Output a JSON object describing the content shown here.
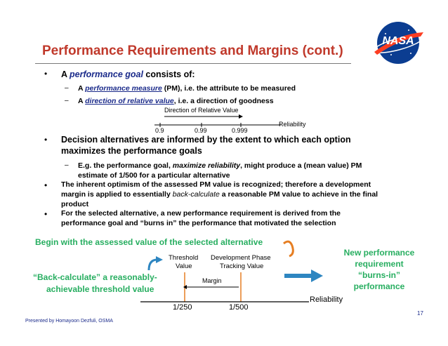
{
  "title": "Performance Requirements and Margins (cont.)",
  "bullets": {
    "b1": {
      "prefix": "A ",
      "em": "performance goal",
      "suffix": " consists of:"
    },
    "b1_sub1": {
      "prefix": "A ",
      "em": "performance measure",
      "suffix": " (PM), i.e. the attribute to be measured"
    },
    "b1_sub2": {
      "prefix": "A ",
      "em": "direction of relative value",
      "suffix": ", i.e. a direction of goodness"
    },
    "b2_line1": "Decision alternatives are informed by the extent to which each option",
    "b2_line2": "maximizes the performance goals",
    "b2_sub1_prefix": "E.g. the performance goal, ",
    "b2_sub1_em": "maximize reliability",
    "b2_sub1_suffix": ", might produce a (mean value) PM",
    "b2_sub1_line2": "estimate of 1/500 for a particular alternative",
    "b3_line1": "The inherent optimism of the assessed PM value is recognized; therefore a development",
    "b3_line2_prefix": "margin is applied to essentially ",
    "b3_line2_em": "back-calculate",
    "b3_line2_suffix": " a reasonable PM value to achieve in the final",
    "b3_line3": "product",
    "b4_line1": "For the selected alternative, a new performance requirement is derived from the",
    "b4_line2": "performance goal and “burns in” the performance that motivated the selection"
  },
  "scale1": {
    "direction_label": "Direction of Relative Value",
    "axis_label": "Reliability",
    "ticks": [
      "0.9",
      "0.99",
      "0.999"
    ]
  },
  "diagram": {
    "begin_text": "Begin with the assessed value of the selected alternative",
    "threshold_label_1": "Threshold",
    "threshold_label_2": "Value",
    "dev_label_1": "Development Phase",
    "dev_label_2": "Tracking Value",
    "margin_label": "Margin",
    "axis_label": "Reliability",
    "tick_1": "1/250",
    "tick_2": "1/500",
    "back_calc_1": "“Back-calculate” a reasonably-",
    "back_calc_2": "achievable threshold value",
    "new_perf_1": "New performance",
    "new_perf_2": "requirement",
    "new_perf_3": "“burns-in”",
    "new_perf_4": "performance"
  },
  "logo_text": "NASA",
  "footer": "Presented by Homayoon Dezfuli, OSMA",
  "page_number": "17",
  "colors": {
    "title": "#c0392b",
    "green": "#27ae60",
    "blue": "#1a2a8a",
    "arrow_blue": "#2e86c1",
    "arrow_orange": "#e67e22"
  }
}
